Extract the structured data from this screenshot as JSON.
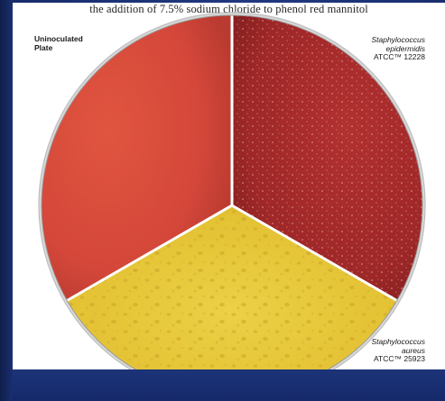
{
  "header_text": "the addition of 7.5% sodium chloride to phenol red mannitol",
  "labels": {
    "uninoculated_line1": "Uninoculated",
    "uninoculated_line2": "Plate",
    "epidermidis_genus": "Staphylococcus",
    "epidermidis_species": "epidermidis",
    "epidermidis_atcc": "ATCC™ 12228",
    "aureus_genus": "Staphylococcus",
    "aureus_species": "aureus",
    "aureus_atcc": "ATCC™ 25923"
  },
  "colors": {
    "slide_background": "#1d3479",
    "uninoculated_red": "#d4473a",
    "epidermidis_dark_red": "#a82a2a",
    "aureus_yellow": "#e6c535",
    "plate_rim": "#c7c7c7"
  }
}
